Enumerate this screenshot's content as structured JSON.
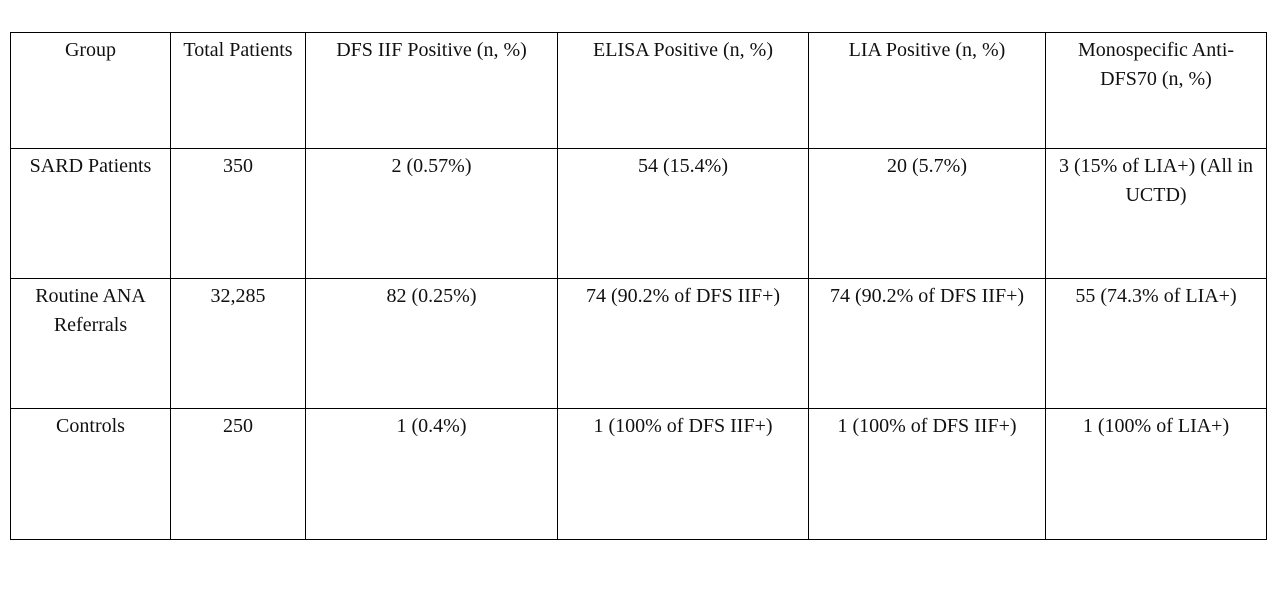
{
  "table": {
    "header": [
      "Group",
      "Total Patients",
      "DFS IIF Positive (n, %)",
      "ELISA Positive (n, %)",
      "LIA Positive (n, %)",
      "Monospecific Anti-DFS70 (n, %)"
    ],
    "rows": [
      [
        "SARD Patients",
        "350",
        "2 (0.57%)",
        "54 (15.4%)",
        "20 (5.7%)",
        "3 (15% of LIA+) (All in UCTD)"
      ],
      [
        "Routine ANA Referrals",
        "32,285",
        "82 (0.25%)",
        "74 (90.2% of DFS IIF+)",
        "74 (90.2% of DFS IIF+)",
        "55 (74.3% of LIA+)"
      ],
      [
        "Controls",
        "250",
        "1 (0.4%)",
        "1 (100% of DFS IIF+)",
        "1 (100% of DFS IIF+)",
        "1 (100% of LIA+)"
      ]
    ]
  }
}
